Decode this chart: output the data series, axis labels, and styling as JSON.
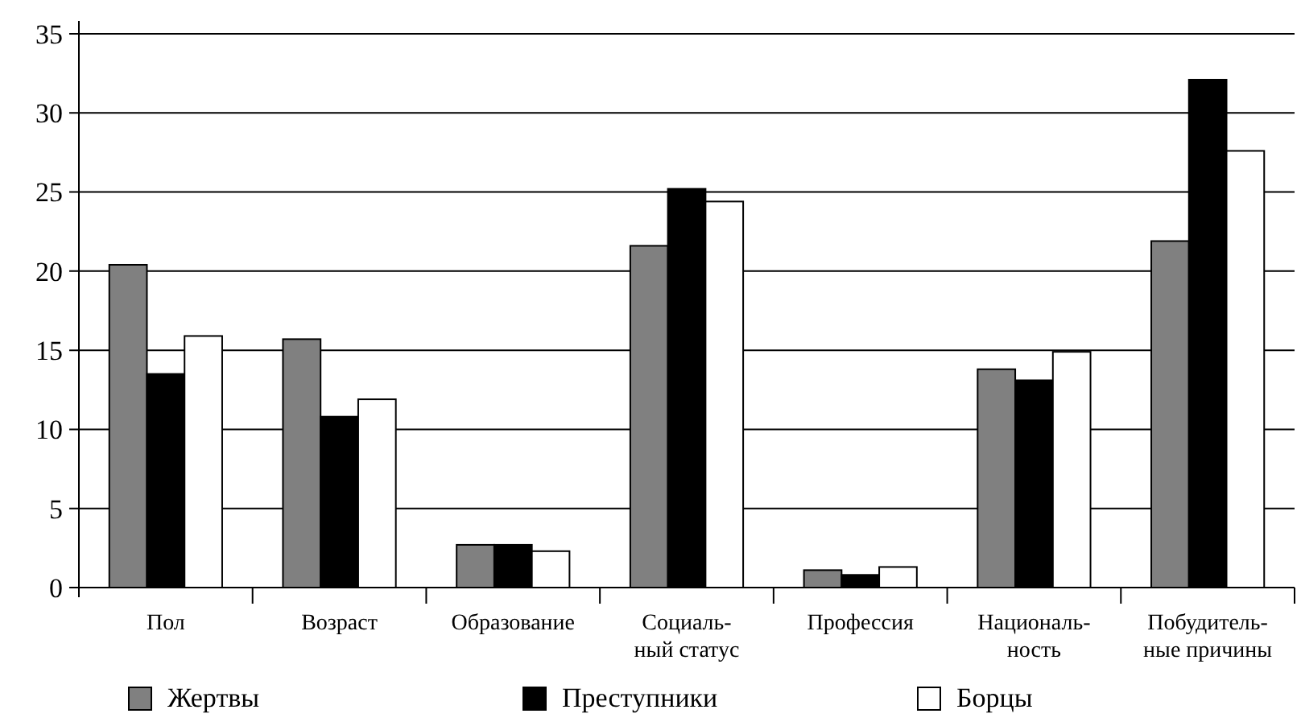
{
  "chart_data": {
    "type": "bar",
    "categories": [
      "Пол",
      "Возраст",
      "Образование",
      "Социаль-\nный статус",
      "Профессия",
      "Националь-\nность",
      "Побудитель-\nные причины"
    ],
    "series": [
      {
        "name": "Жертвы",
        "color": "#808080",
        "values": [
          20.4,
          15.7,
          2.7,
          21.6,
          1.1,
          13.8,
          21.9
        ]
      },
      {
        "name": "Преступники",
        "color": "#000000",
        "values": [
          13.5,
          10.8,
          2.7,
          25.2,
          0.8,
          13.1,
          32.1
        ]
      },
      {
        "name": "Борцы",
        "color": "#ffffff",
        "values": [
          15.9,
          11.9,
          2.3,
          24.4,
          1.3,
          14.9,
          27.6
        ]
      }
    ],
    "ylim": [
      0,
      35
    ],
    "yticks": [
      0,
      5,
      10,
      15,
      20,
      25,
      30,
      35
    ],
    "grid": "y",
    "legend": "bottom"
  }
}
